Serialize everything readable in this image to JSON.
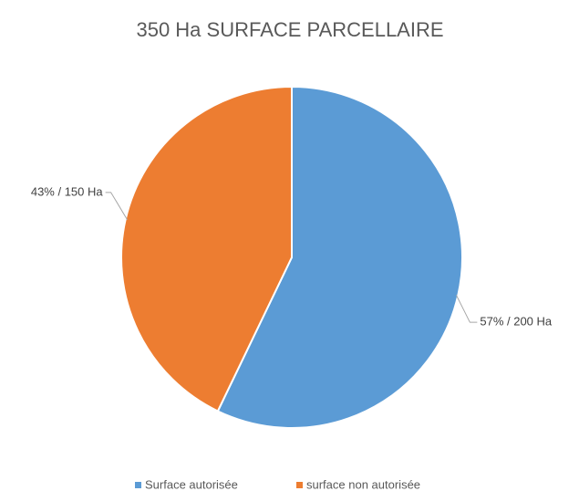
{
  "chart_data": {
    "type": "pie",
    "title": "350 Ha SURFACE PARCELLAIRE",
    "categories": [
      "Surface autorisée",
      "surface non autorisée"
    ],
    "values": [
      200,
      150
    ],
    "value_labels": [
      "57% / 200 Ha",
      "43% / 150 Ha"
    ],
    "colors": [
      "#5b9bd5",
      "#ed7d31"
    ],
    "legend": "bottom"
  }
}
